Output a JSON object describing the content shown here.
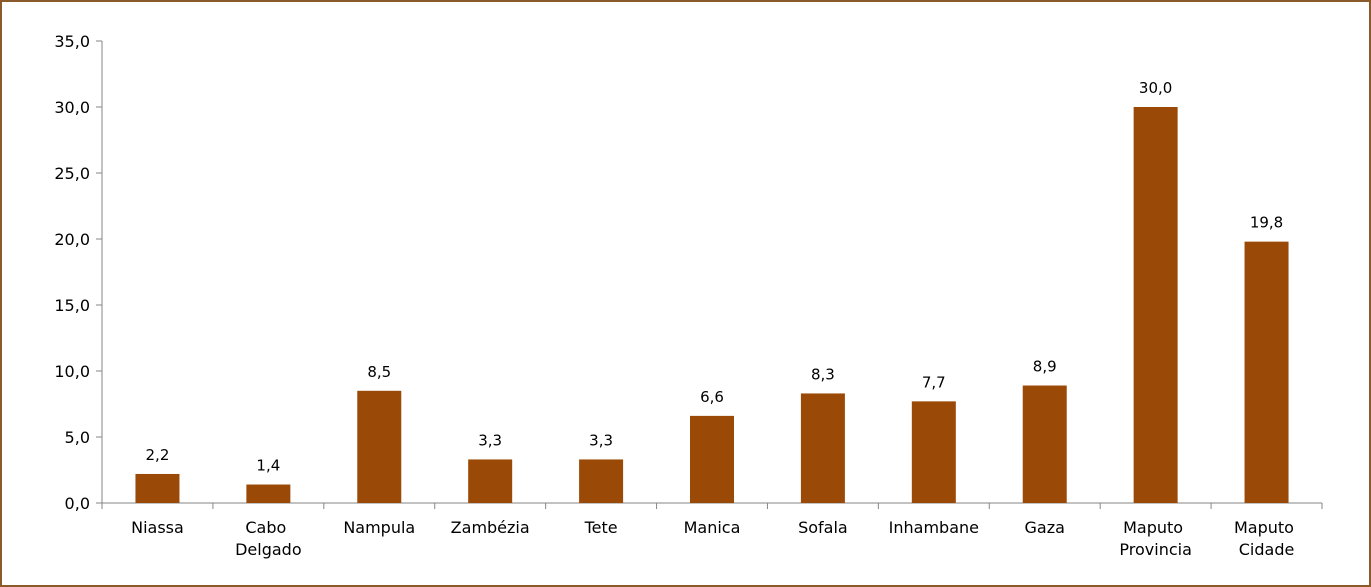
{
  "chart_data": {
    "type": "bar",
    "categories": [
      "Niassa",
      "Cabo Delgado",
      "Nampula",
      "Zambézia",
      "Tete",
      "Manica",
      "Sofala",
      "Inhambane",
      "Gaza",
      "Maputo Provincia",
      "Maputo Cidade"
    ],
    "values": [
      2.2,
      1.4,
      8.5,
      3.3,
      3.3,
      6.6,
      8.3,
      7.7,
      8.9,
      30.0,
      19.8
    ],
    "value_labels": [
      "2,2",
      "1,4",
      "8,5",
      "3,3",
      "3,3",
      "6,6",
      "8,3",
      "7,7",
      "8,9",
      "30,0",
      "19,8"
    ],
    "color": "#9a4a06",
    "ylim": [
      0,
      35
    ],
    "yticks": [
      {
        "value": 0,
        "label": "0,0"
      },
      {
        "value": 5,
        "label": "5,0"
      },
      {
        "value": 10,
        "label": "10,0"
      },
      {
        "value": 15,
        "label": "15,0"
      },
      {
        "value": 20,
        "label": "20,0"
      },
      {
        "value": 25,
        "label": "25,0"
      },
      {
        "value": 30,
        "label": "30,0"
      },
      {
        "value": 35,
        "label": "35,0"
      }
    ],
    "grid": false
  }
}
